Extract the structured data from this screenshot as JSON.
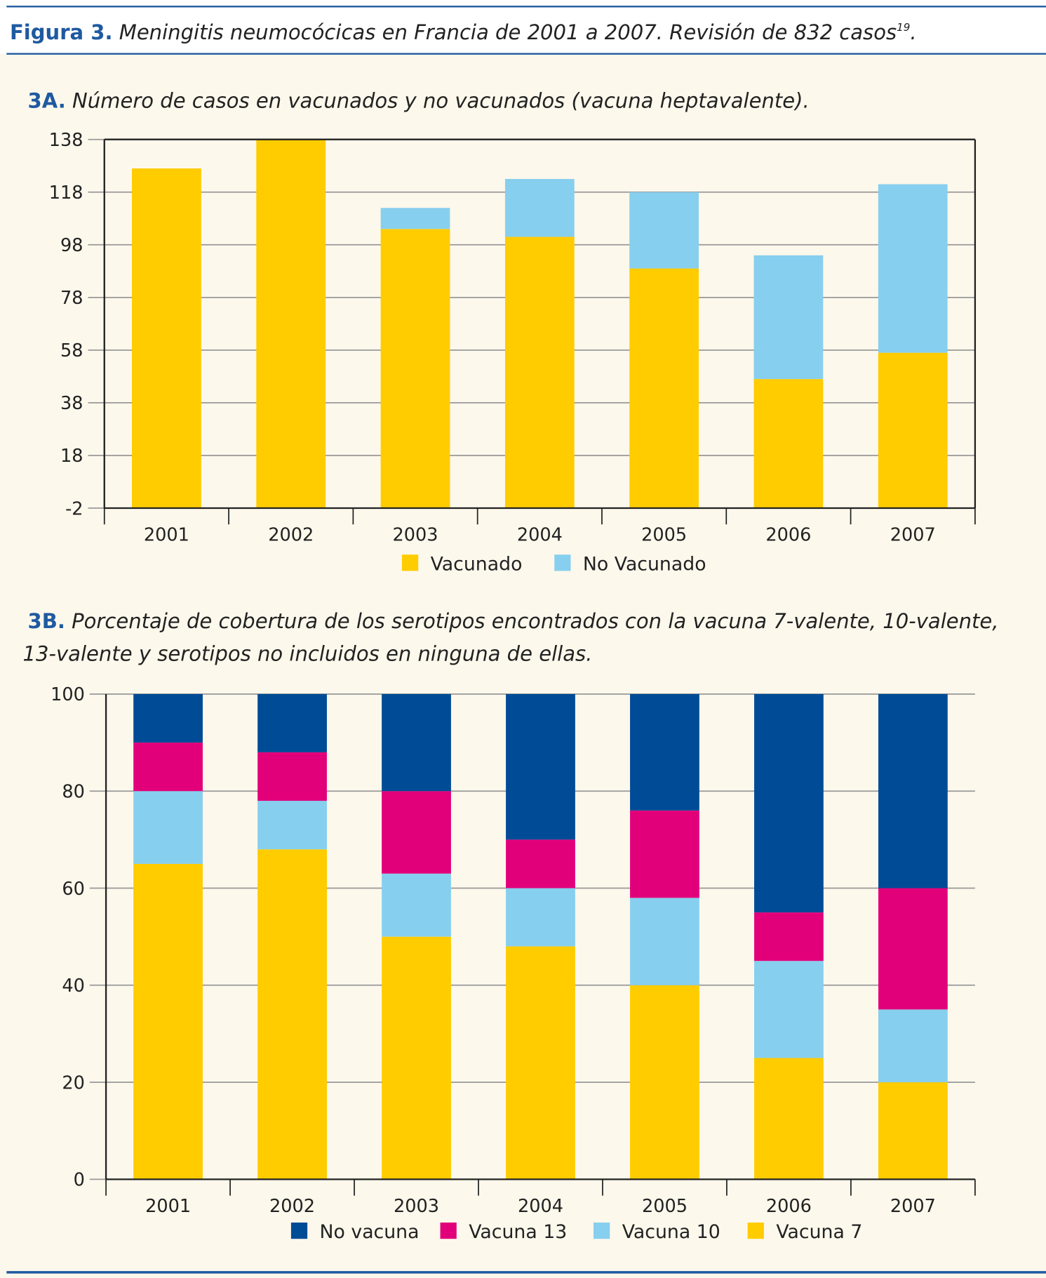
{
  "figure": {
    "label": "Figura 3.",
    "title": "Meningitis neumocócicas en Francia de 2001 a 2007. Revisión de 832 casos",
    "superscript": "19",
    "title_end": "."
  },
  "colors": {
    "vacuna7": "#ffcc00",
    "vacuna10": "#87cfee",
    "vacuna13": "#e2007a",
    "no_vacuna": "#004b96",
    "title_blue": "#1f5aa0",
    "background": "#fdf8ec"
  },
  "chart_data": [
    {
      "type": "bar",
      "stacked": true,
      "label": "3A.",
      "title": "Número de casos en vacunados y no vacunados (vacuna heptavalente).",
      "categories": [
        "2001",
        "2002",
        "2003",
        "2004",
        "2005",
        "2006",
        "2007"
      ],
      "series": [
        {
          "name": "Vacunado",
          "color": "#ffcc00",
          "values": [
            127,
            138,
            104,
            101,
            89,
            47,
            57
          ]
        },
        {
          "name": "No Vacunado",
          "color": "#87cfee",
          "values": [
            0,
            0,
            8,
            22,
            29,
            47,
            64
          ]
        }
      ],
      "ylim": [
        -2,
        138
      ],
      "yticks": [
        "138",
        "118",
        "98",
        "78",
        "58",
        "38",
        "18",
        "-2"
      ],
      "grid": true,
      "legend": "bottom"
    },
    {
      "type": "bar",
      "stacked": true,
      "label": "3B.",
      "title_line1": "Porcentaje de cobertura de los serotipos encontrados con la vacuna 7-valente, 10-valente,",
      "title_line2": "13-valente y serotipos no incluidos en ninguna de ellas.",
      "categories": [
        "2001",
        "2002",
        "2003",
        "2004",
        "2005",
        "2006",
        "2007"
      ],
      "series": [
        {
          "name": "Vacuna 7",
          "color": "#ffcc00",
          "values": [
            65,
            68,
            50,
            48,
            40,
            25,
            20
          ]
        },
        {
          "name": "Vacuna 10",
          "color": "#87cfee",
          "values": [
            15,
            10,
            13,
            12,
            18,
            20,
            15
          ]
        },
        {
          "name": "Vacuna 13",
          "color": "#e2007a",
          "values": [
            10,
            10,
            17,
            10,
            18,
            10,
            25
          ]
        },
        {
          "name": "No vacuna",
          "color": "#004b96",
          "values": [
            10,
            12,
            20,
            30,
            24,
            45,
            40
          ]
        }
      ],
      "legend_order": [
        "No vacuna",
        "Vacuna 13",
        "Vacuna 10",
        "Vacuna 7"
      ],
      "ylim": [
        0,
        100
      ],
      "yticks": [
        "100",
        "80",
        "60",
        "40",
        "20",
        "0"
      ],
      "grid": true,
      "legend": "bottom"
    }
  ]
}
